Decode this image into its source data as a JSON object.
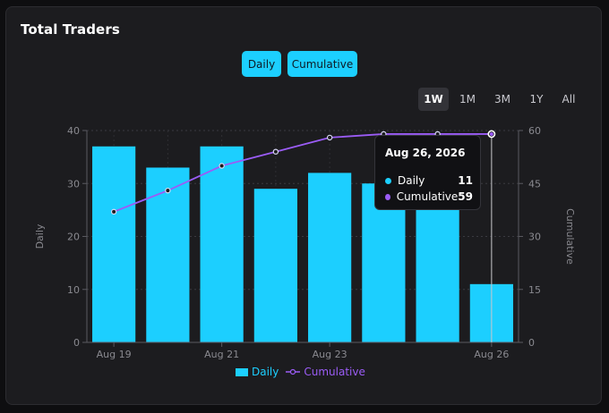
{
  "card": {
    "title": "Total Traders"
  },
  "toggles": [
    {
      "label": "Daily",
      "active": true
    },
    {
      "label": "Cumulative",
      "active": true
    }
  ],
  "ranges": [
    {
      "label": "1W",
      "active": true
    },
    {
      "label": "1M",
      "active": false
    },
    {
      "label": "3M",
      "active": false
    },
    {
      "label": "1Y",
      "active": false
    },
    {
      "label": "All",
      "active": false
    }
  ],
  "colors": {
    "daily": "#1ccfff",
    "cumulative": "#9b5cf6",
    "background": "#1c1c1f"
  },
  "chart_data": {
    "type": "bar",
    "x": [
      "Aug 19",
      "Aug 20",
      "Aug 21",
      "Aug 22",
      "Aug 23",
      "Aug 24",
      "Aug 25",
      "Aug 26"
    ],
    "x_tick_labels": [
      "Aug 19",
      "Aug 21",
      "Aug 23",
      "Aug 26"
    ],
    "series": [
      {
        "name": "Daily",
        "type": "bar",
        "axis": "left",
        "values": [
          37,
          33,
          37,
          29,
          32,
          30,
          30,
          11
        ]
      },
      {
        "name": "Cumulative",
        "type": "line",
        "axis": "right",
        "values": [
          37,
          43,
          50,
          54,
          58,
          59,
          59,
          59
        ]
      }
    ],
    "ylabel": "Daily",
    "ylabel_right": "Cumulative",
    "ylim": [
      0,
      40
    ],
    "ylim_right": [
      0,
      60
    ],
    "y_ticks": [
      "0",
      "10",
      "20",
      "30",
      "40"
    ],
    "y_ticks_right": [
      "0",
      "15",
      "30",
      "45",
      "60"
    ],
    "grid": true,
    "legend": "bottom-center"
  },
  "tooltip": {
    "date": "Aug 26, 2026",
    "rows": [
      {
        "label": "Daily",
        "value": "11"
      },
      {
        "label": "Cumulative",
        "value": "59"
      }
    ]
  },
  "legend": {
    "daily": "Daily",
    "cumulative": "Cumulative"
  }
}
